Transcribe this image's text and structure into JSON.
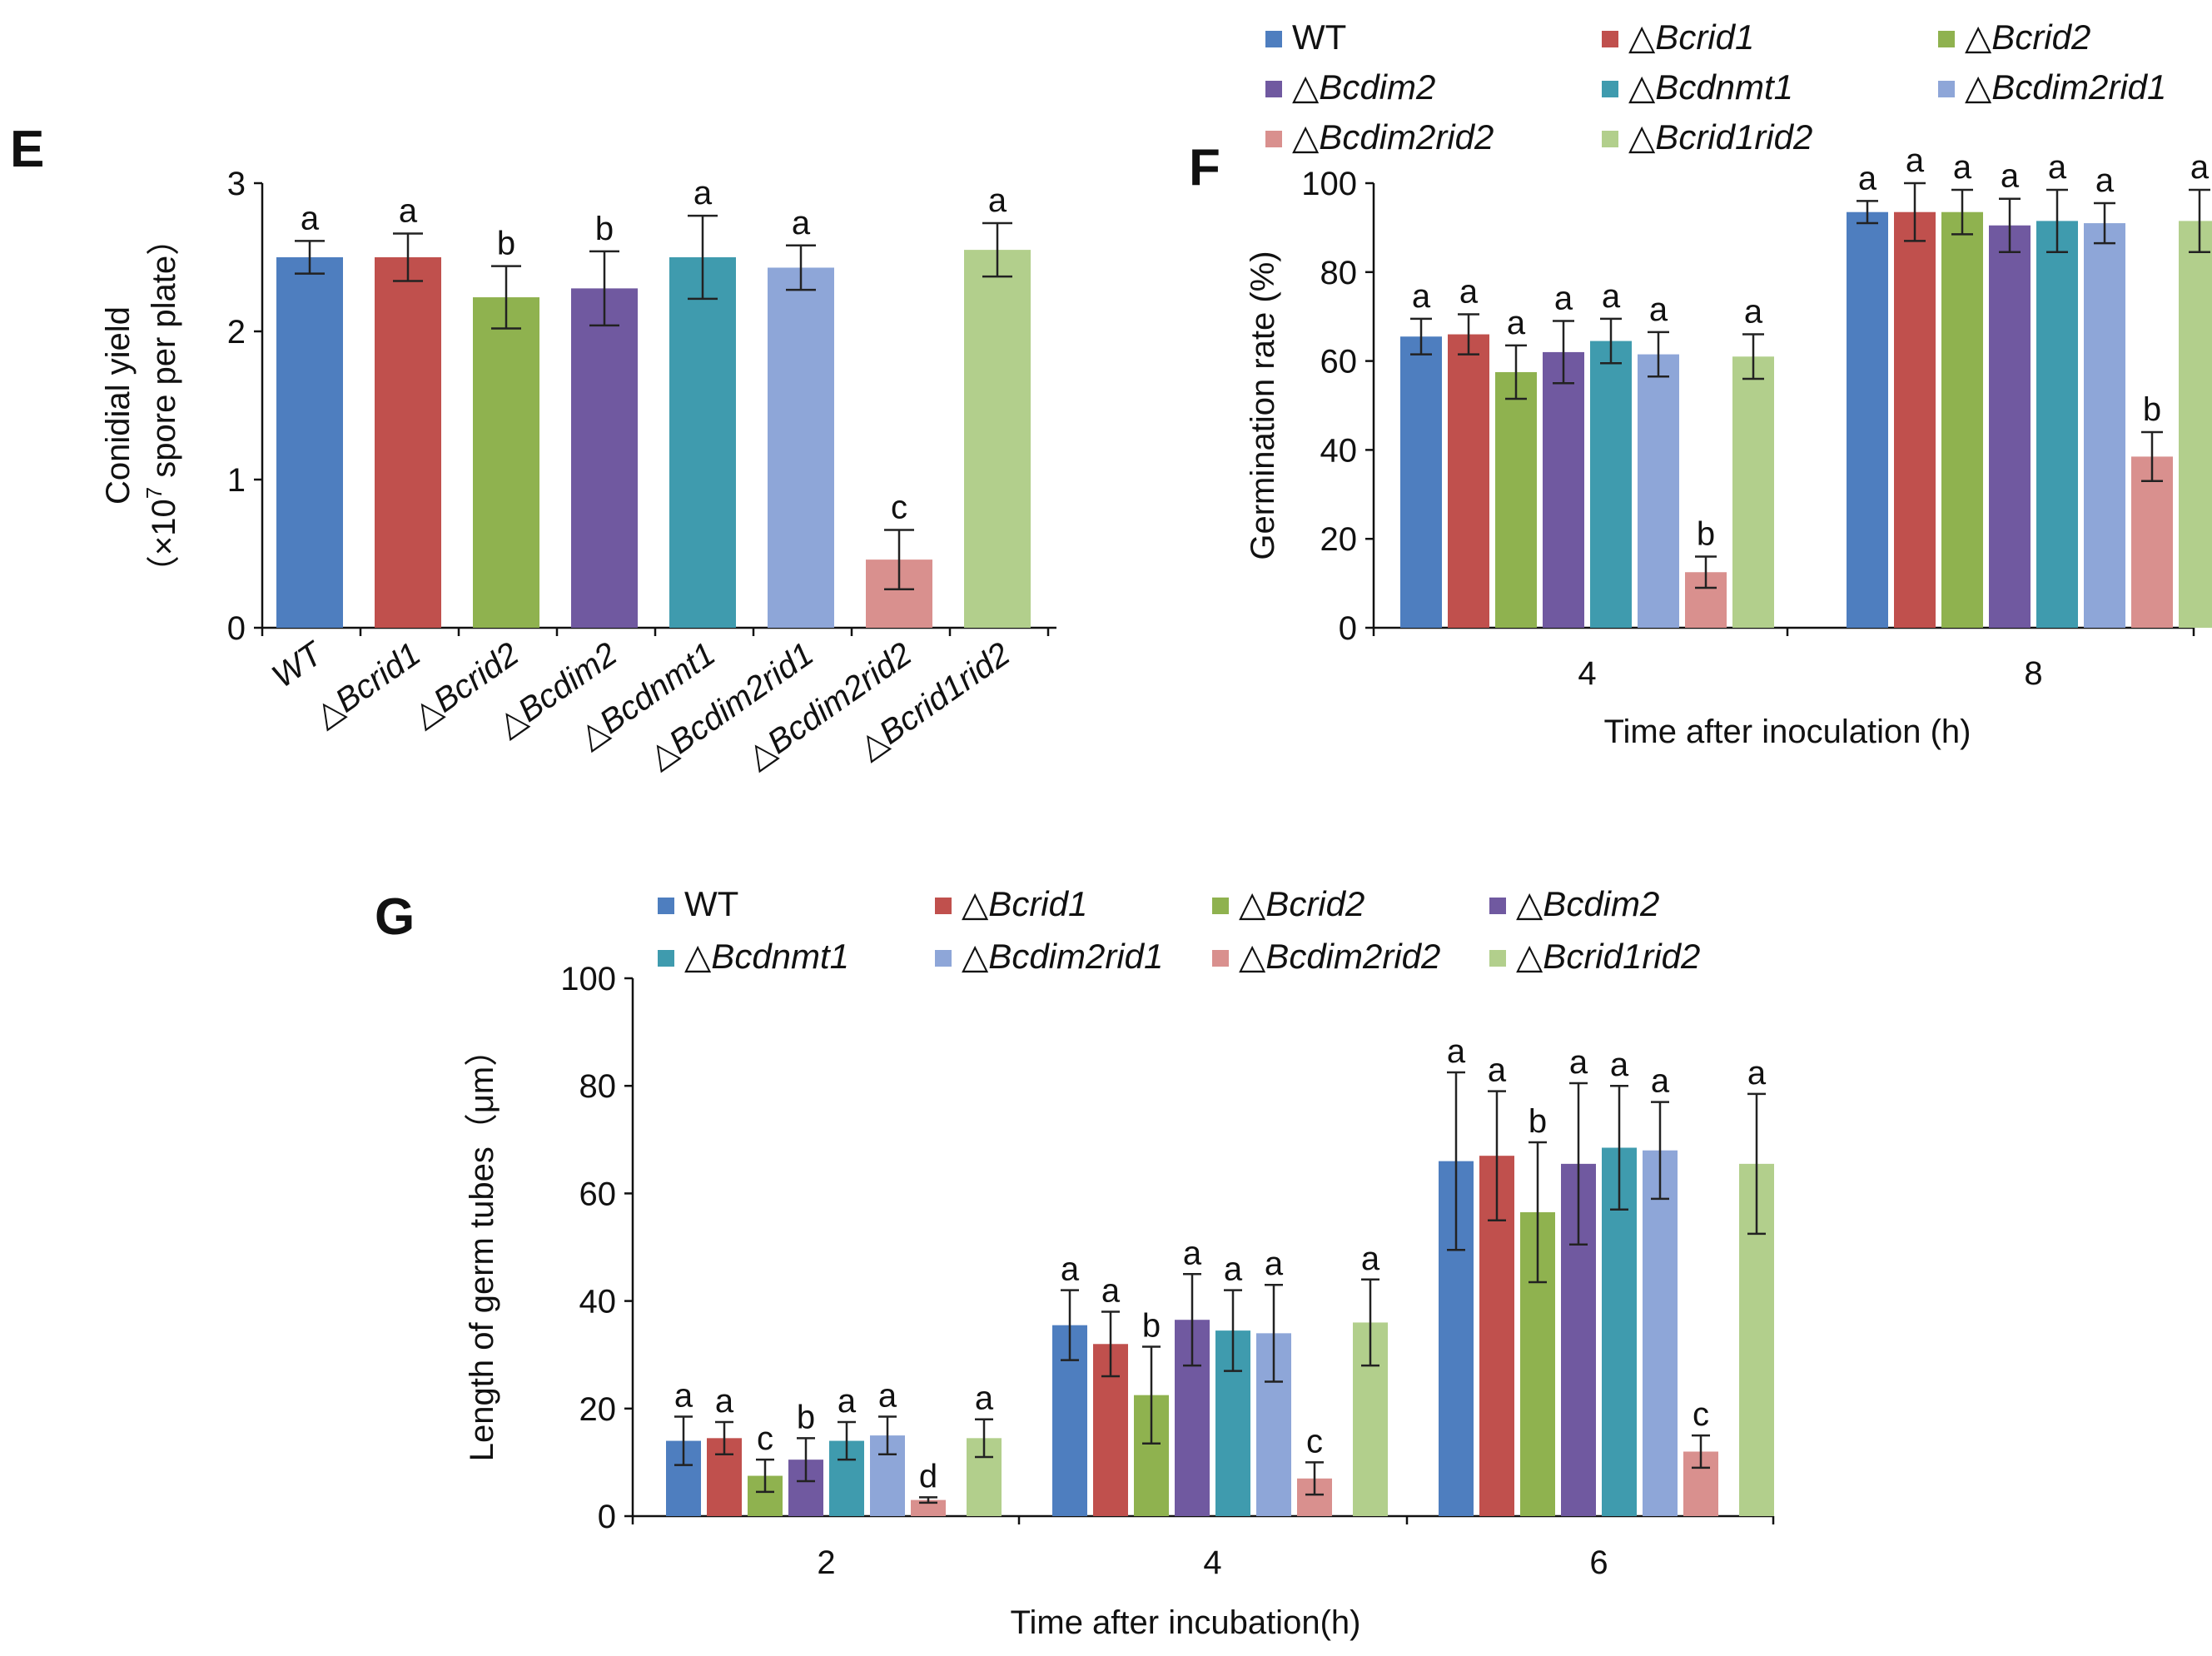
{
  "strains": [
    "WT",
    "△Bcrid1",
    "△Bcrid2",
    "△Bcdim2",
    "△Bcdnmt1",
    "△Bcdim2rid1",
    "△Bcdim2rid2",
    "△Bcrid1rid2"
  ],
  "colors": [
    "#4e7ebf",
    "#c0504d",
    "#8fb24f",
    "#7059a0",
    "#3f9bae",
    "#8ea6d8",
    "#d9908e",
    "#b2cf8c"
  ],
  "chart_data": [
    {
      "panel": "E",
      "type": "bar",
      "title": "",
      "xlabel": "",
      "ylabel": [
        "Conidial yield",
        "（×10",
        "7",
        " spore per plate）"
      ],
      "ylim": [
        0,
        3
      ],
      "yticks": [
        "0",
        "1",
        "2",
        "3"
      ],
      "categories": [
        "WT",
        "△Bcrid1",
        "△Bcrid2",
        "△Bcdim2",
        "△Bcdnmt1",
        "△Bcdim2rid1",
        "△Bcdim2rid2",
        "△Bcrid1rid2"
      ],
      "values": [
        2.5,
        2.5,
        2.23,
        2.29,
        2.5,
        2.43,
        0.46,
        2.55
      ],
      "errors": [
        0.11,
        0.16,
        0.21,
        0.25,
        0.28,
        0.15,
        0.2,
        0.18
      ],
      "significance": [
        "a",
        "a",
        "b",
        "b",
        "a",
        "a",
        "c",
        "a"
      ]
    },
    {
      "panel": "F",
      "type": "bar",
      "title": "",
      "xlabel": "Time after inoculation (h)",
      "ylabel": "Germination rate (%)",
      "ylim": [
        0,
        100
      ],
      "yticks": [
        "0",
        "20",
        "40",
        "60",
        "80",
        "100"
      ],
      "categories": [
        "4",
        "8"
      ],
      "series": [
        {
          "name": "WT",
          "values": [
            65.5,
            93.5
          ],
          "errors": [
            4,
            2.5
          ],
          "significance": [
            "a",
            "a"
          ]
        },
        {
          "name": "△Bcrid1",
          "values": [
            66,
            93.5
          ],
          "errors": [
            4.5,
            6.5
          ],
          "significance": [
            "a",
            "a"
          ]
        },
        {
          "name": "△Bcrid2",
          "values": [
            57.5,
            93.5
          ],
          "errors": [
            6,
            5
          ],
          "significance": [
            "a",
            "a"
          ]
        },
        {
          "name": "△Bcdim2",
          "values": [
            62,
            90.5
          ],
          "errors": [
            7,
            6
          ],
          "significance": [
            "a",
            "a"
          ]
        },
        {
          "name": "△Bcdnmt1",
          "values": [
            64.5,
            91.5
          ],
          "errors": [
            5,
            7
          ],
          "significance": [
            "a",
            "a"
          ]
        },
        {
          "name": "△Bcdim2rid1",
          "values": [
            61.5,
            91
          ],
          "errors": [
            5,
            4.5
          ],
          "significance": [
            "a",
            "a"
          ]
        },
        {
          "name": "△Bcdim2rid2",
          "values": [
            12.5,
            38.5
          ],
          "errors": [
            3.5,
            5.5
          ],
          "significance": [
            "b",
            "b"
          ]
        },
        {
          "name": "△Bcrid1rid2",
          "values": [
            61,
            91.5
          ],
          "errors": [
            5,
            7
          ],
          "significance": [
            "a",
            "a"
          ]
        }
      ],
      "legend": "top"
    },
    {
      "panel": "G",
      "type": "bar",
      "title": "",
      "xlabel": "Time after incubation(h)",
      "ylabel": "Length of germ tubes（μm）",
      "ylim": [
        0,
        100
      ],
      "yticks": [
        "0",
        "20",
        "40",
        "60",
        "80",
        "100"
      ],
      "categories": [
        "2",
        "4",
        "6"
      ],
      "series": [
        {
          "name": "WT",
          "values": [
            14,
            35.5,
            66
          ],
          "errors": [
            4.5,
            6.5,
            16.5
          ],
          "significance": [
            "a",
            "a",
            "a"
          ]
        },
        {
          "name": "△Bcrid1",
          "values": [
            14.5,
            32,
            67
          ],
          "errors": [
            3,
            6,
            12
          ],
          "significance": [
            "a",
            "a",
            "a"
          ]
        },
        {
          "name": "△Bcrid2",
          "values": [
            7.5,
            22.5,
            56.5
          ],
          "errors": [
            3,
            9,
            13
          ],
          "significance": [
            "c",
            "b",
            "b"
          ]
        },
        {
          "name": "△Bcdim2",
          "values": [
            10.5,
            36.5,
            65.5
          ],
          "errors": [
            4,
            8.5,
            15
          ],
          "significance": [
            "b",
            "a",
            "a"
          ]
        },
        {
          "name": "△Bcdnmt1",
          "values": [
            14,
            34.5,
            68.5
          ],
          "errors": [
            3.5,
            7.5,
            11.5
          ],
          "significance": [
            "a",
            "a",
            "a"
          ]
        },
        {
          "name": "△Bcdim2rid1",
          "values": [
            15,
            34,
            68
          ],
          "errors": [
            3.5,
            9,
            9
          ],
          "significance": [
            "a",
            "a",
            "a"
          ]
        },
        {
          "name": "△Bcdim2rid2",
          "values": [
            3,
            7,
            12
          ],
          "errors": [
            0.5,
            3,
            3
          ],
          "significance": [
            "d",
            "c",
            "c"
          ]
        },
        {
          "name": "△Bcrid1rid2",
          "values": [
            14.5,
            36,
            65.5
          ],
          "errors": [
            3.5,
            8,
            13
          ],
          "significance": [
            "a",
            "a",
            "a"
          ]
        }
      ],
      "legend": "top"
    }
  ]
}
